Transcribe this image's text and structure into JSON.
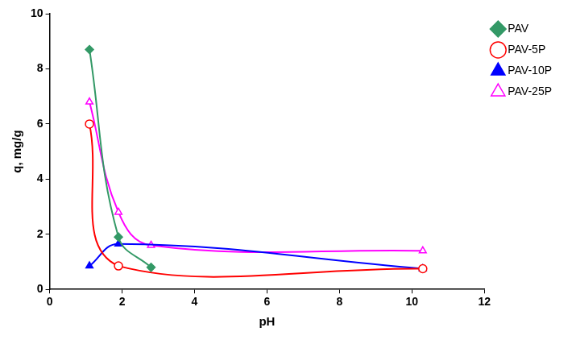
{
  "chart_data": {
    "type": "line",
    "x_label": "pH",
    "y_label": "q, mg/g",
    "xlim": [
      0,
      12
    ],
    "xticks": [
      0,
      2,
      4,
      6,
      8,
      10,
      12
    ],
    "ylim": [
      0,
      10
    ],
    "yticks": [
      0,
      2,
      4,
      6,
      8,
      10
    ],
    "grid": false,
    "legend": "right",
    "series": [
      {
        "name": "PAV",
        "color": "#339966",
        "marker": "diamond",
        "x": [
          1.1,
          1.9,
          2.8
        ],
        "values": [
          8.7,
          1.9,
          0.8
        ]
      },
      {
        "name": "PAV-5P",
        "color": "#ff0000",
        "marker": "open_circle",
        "x": [
          1.1,
          1.9,
          10.3
        ],
        "values": [
          6.0,
          0.85,
          0.75
        ]
      },
      {
        "name": "PAV-10P",
        "color": "#0000ff",
        "marker": "triangle",
        "x": [
          1.1,
          1.9,
          10.3
        ],
        "values": [
          0.85,
          1.65,
          0.75
        ]
      },
      {
        "name": "PAV-25P",
        "color": "#ff00ff",
        "marker": "open_triangle",
        "x": [
          1.1,
          1.9,
          2.8,
          10.3
        ],
        "values": [
          6.8,
          2.8,
          1.6,
          1.4
        ]
      }
    ]
  }
}
